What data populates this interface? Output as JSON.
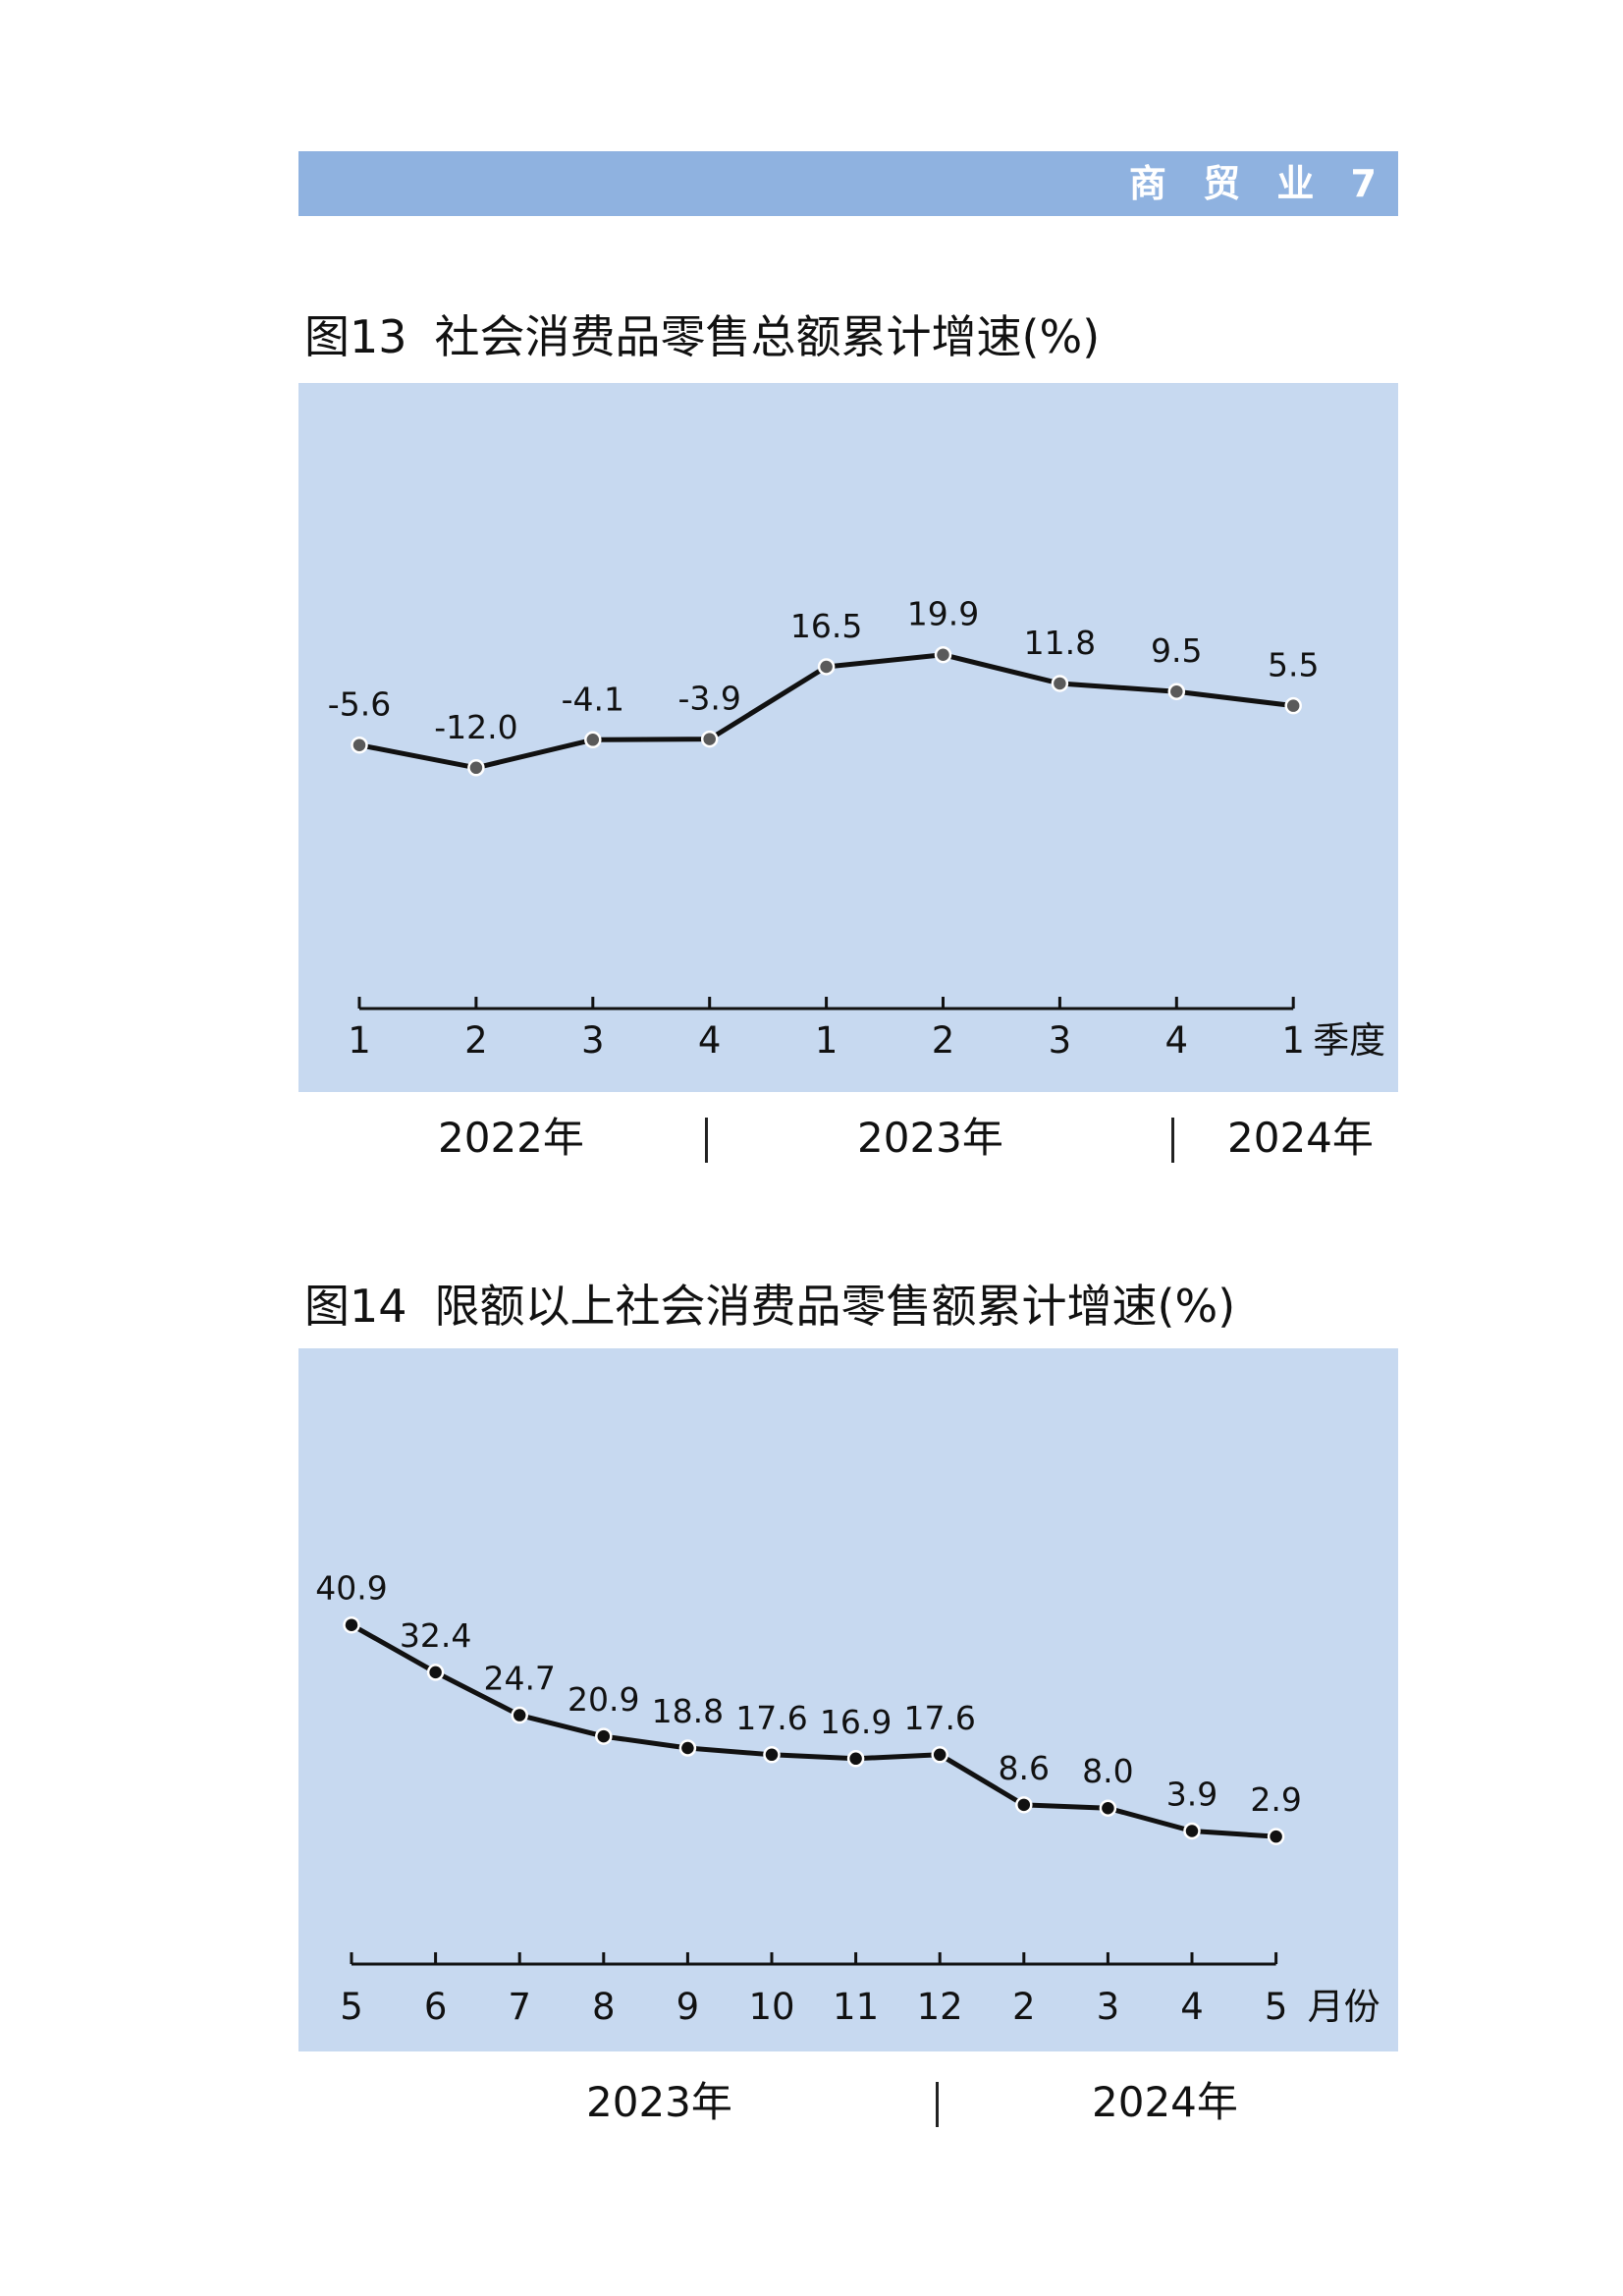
{
  "header": {
    "title": "商 贸 业 7"
  },
  "figures": [
    {
      "number": "图13",
      "title": "社会消费品零售总额累计增速(%)",
      "years": [
        "2022年",
        "2023年",
        "2024年"
      ],
      "unit": "季度",
      "marker_color": "#5a5a5a"
    },
    {
      "number": "图14",
      "title": "限额以上社会消费品零售额累计增速(%)",
      "years": [
        "2023年",
        "2024年"
      ],
      "unit": "月份",
      "marker_color": "#111111"
    }
  ],
  "chart_data": [
    {
      "type": "line",
      "categories": [
        "1",
        "2",
        "3",
        "4",
        "1",
        "2",
        "3",
        "4",
        "1"
      ],
      "values": [
        -5.6,
        -12.0,
        -4.1,
        -3.9,
        16.5,
        19.9,
        11.8,
        9.5,
        5.5
      ],
      "value_labels": [
        "-5.6",
        "-12.0",
        "-4.1",
        "-3.9",
        "16.5",
        "19.9",
        "11.8",
        "9.5",
        "5.5"
      ],
      "title": "社会消费品零售总额累计增速(%)",
      "xlabel": "季度",
      "ylabel": "",
      "ylim": [
        -80,
        80
      ],
      "grid": false
    },
    {
      "type": "line",
      "categories": [
        "5",
        "6",
        "7",
        "8",
        "9",
        "10",
        "11",
        "12",
        "2",
        "3",
        "4",
        "5"
      ],
      "values": [
        40.9,
        32.4,
        24.7,
        20.9,
        18.8,
        17.6,
        16.9,
        17.6,
        8.6,
        8.0,
        3.9,
        2.9
      ],
      "value_labels": [
        "40.9",
        "32.4",
        "24.7",
        "20.9",
        "18.8",
        "17.6",
        "16.9",
        "17.6",
        "8.6",
        "8.0",
        "3.9",
        "2.9"
      ],
      "title": "限额以上社会消费品零售额累计增速(%)",
      "xlabel": "月份",
      "ylabel": "",
      "ylim": [
        -20,
        80
      ],
      "grid": false
    }
  ]
}
